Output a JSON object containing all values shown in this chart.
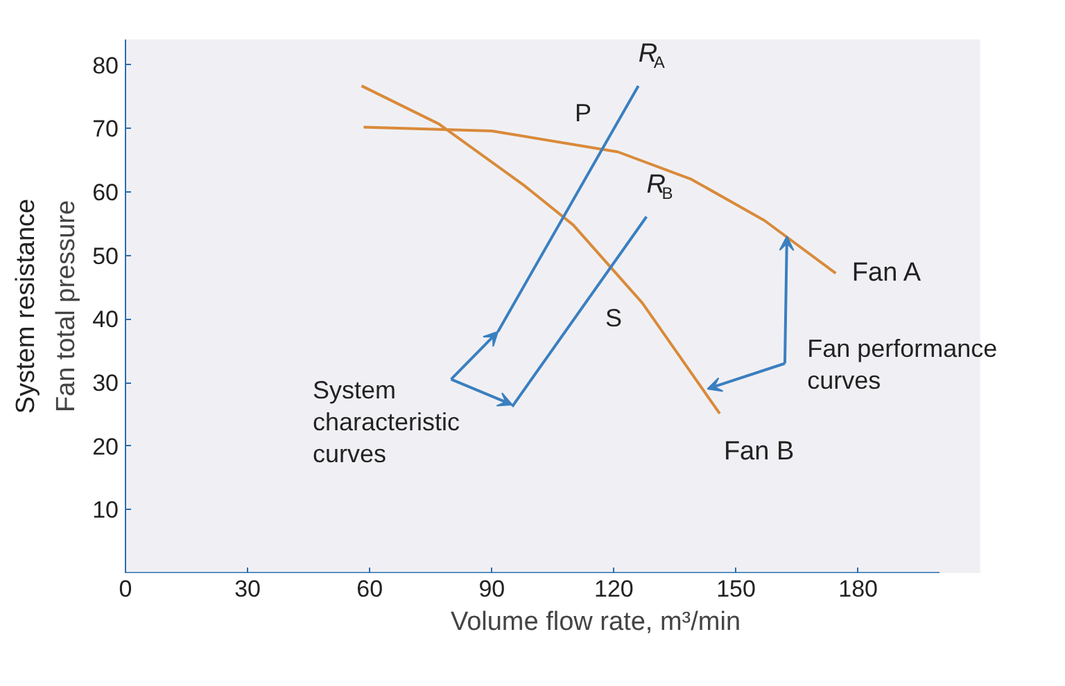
{
  "chart_data": {
    "type": "line",
    "xlabel": "Volume flow rate, m³/min",
    "ylabel": "Fan total pressure",
    "xlim": [
      0,
      200
    ],
    "ylim": [
      0,
      84
    ],
    "xticks": [
      0,
      30,
      60,
      90,
      120,
      150,
      180
    ],
    "yticks": [
      10,
      20,
      30,
      40,
      50,
      60,
      70,
      80
    ],
    "grid": false,
    "line_style": "solid",
    "marker": "none",
    "series": [
      {
        "name": "Fan A",
        "color": "#d98a3a",
        "x": [
          58.5,
          90,
          121,
          139,
          157,
          174.5
        ],
        "values": [
          70.2,
          69.6,
          66.3,
          62,
          55.5,
          47.2
        ]
      },
      {
        "name": "Fan B",
        "color": "#d98a3a",
        "x": [
          58,
          77,
          98,
          110,
          127,
          146
        ],
        "values": [
          76.7,
          70.7,
          61,
          54.8,
          42.5,
          25.1
        ]
      },
      {
        "name": "R$_{A}$",
        "color": "#3a7fc0",
        "x": [
          91.5,
          126
        ],
        "values": [
          38,
          76.7
        ]
      },
      {
        "name": "R$_{B}$",
        "color": "#3a7fc0",
        "x": [
          95,
          128
        ],
        "values": [
          26.2,
          56.1
        ]
      }
    ],
    "annotations": [
      "System resistance",
      "P",
      "S",
      {
        "text": "System\ncharacteristic\ncurves",
        "x": 91.5,
        "y": 38
      },
      {
        "text": "Fan performance\ncurves",
        "x": 162.5,
        "y": 53
      }
    ]
  }
}
